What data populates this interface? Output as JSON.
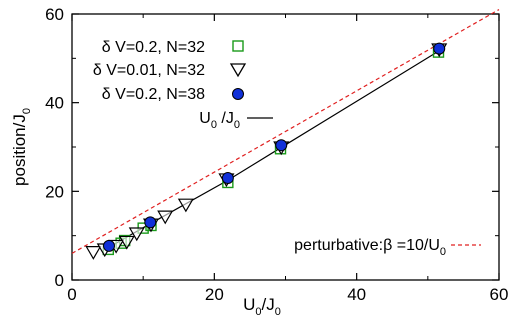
{
  "chart_data": {
    "type": "scatter",
    "xlabel": {
      "main": "U",
      "sub": "0",
      "mid": "/J",
      "sub2": "0"
    },
    "ylabel": {
      "main": "position/J",
      "sub": "0"
    },
    "xlim": [
      0,
      60
    ],
    "ylim": [
      0,
      60
    ],
    "xticks": [
      "0",
      "20",
      "40",
      "60"
    ],
    "yticks": [
      "0",
      "20",
      "40",
      "60"
    ],
    "xtick_values": [
      0,
      20,
      40,
      60
    ],
    "ytick_values": [
      0,
      20,
      40,
      60
    ],
    "grid": false,
    "legend_position": "top-left",
    "series": [
      {
        "name": "δ V=0.2, N=32",
        "marker": "open-square",
        "color": "#1a9a1a",
        "x": [
          5.1,
          6.9,
          7.4,
          10.0,
          11.1,
          21.9,
          29.3,
          51.5
        ],
        "y": [
          6.9,
          8.3,
          8.9,
          11.7,
          12.3,
          22.0,
          29.6,
          51.4
        ]
      },
      {
        "name": "δ V=0.01, N=32",
        "marker": "open-triangle-down",
        "color": "#000000",
        "x": [
          3.0,
          4.6,
          6.2,
          7.7,
          9.1,
          11.1,
          13.1,
          16.0,
          21.7,
          29.4,
          51.6
        ],
        "y": [
          6.4,
          7.0,
          7.8,
          8.7,
          10.6,
          12.6,
          14.4,
          17.1,
          22.8,
          30.0,
          52.1
        ]
      },
      {
        "name": "δ V=0.2, N=38",
        "marker": "filled-circle",
        "color": "#1030d8",
        "x": [
          5.2,
          11.0,
          21.9,
          29.4,
          51.6
        ],
        "y": [
          7.7,
          13.0,
          23.0,
          30.4,
          52.2
        ]
      }
    ],
    "lines": [
      {
        "name_main": "U",
        "name_sub": "0",
        "name_mid": " /J",
        "name_sub2": "0",
        "style": "solid",
        "color": "#000000",
        "x": [
          5.0,
          11.0,
          21.9,
          29.4,
          51.6
        ],
        "y": [
          7.2,
          12.7,
          22.5,
          29.9,
          51.7
        ]
      },
      {
        "name_main": "perturbative:",
        "name_beta": "β",
        "name_rest": " =10/U",
        "name_sub": "0",
        "style": "dashed",
        "color": "#e02020",
        "x": [
          0,
          60
        ],
        "y": [
          6.0,
          61.0
        ]
      }
    ]
  }
}
